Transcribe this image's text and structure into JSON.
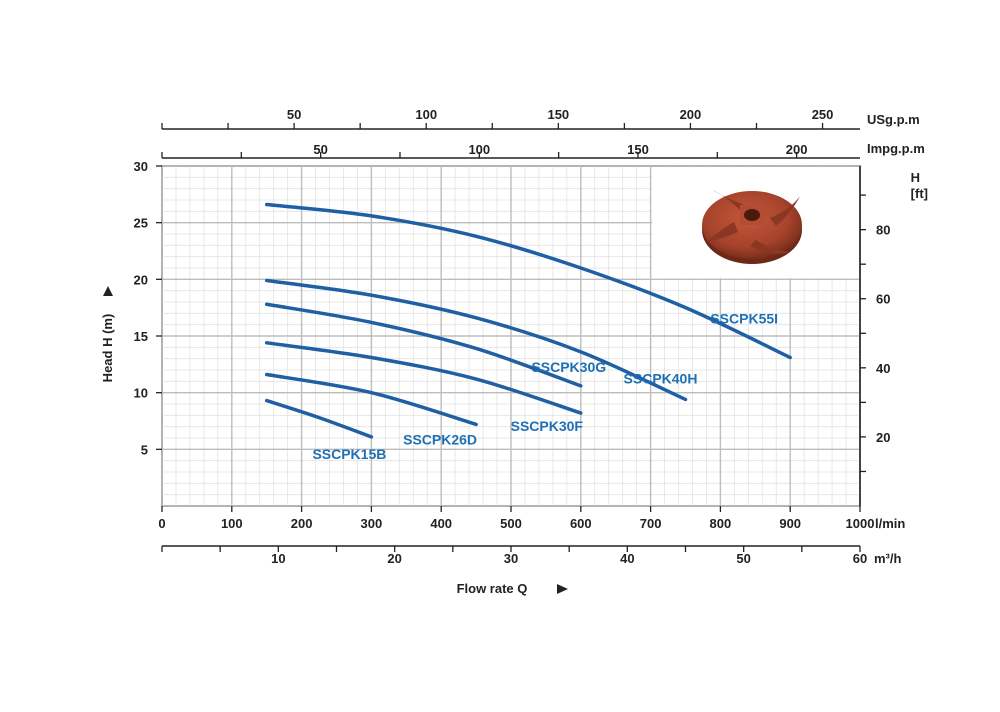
{
  "chart_data": {
    "type": "line",
    "x_unit": "l/min",
    "xlim": [
      0,
      1000
    ],
    "ylim": [
      0,
      30
    ],
    "y_ticks": [
      "5",
      "10",
      "15",
      "20",
      "25",
      "30"
    ],
    "x_ticks": [
      "0",
      "100",
      "200",
      "300",
      "400",
      "500",
      "600",
      "700",
      "800",
      "900",
      "1000"
    ],
    "ylabel": "Head H (m)",
    "xlabel": "Flow rate Q",
    "grid": true,
    "secondary_axes": {
      "usg": {
        "unit": "USg.p.m",
        "ticks": [
          "50",
          "100",
          "150",
          "200",
          "250"
        ]
      },
      "impg": {
        "unit": "Impg.p.m",
        "ticks": [
          "50",
          "100",
          "150",
          "200"
        ]
      },
      "m3h": {
        "unit": "m³/h",
        "ticks": [
          "10",
          "20",
          "30",
          "40",
          "50",
          "60"
        ]
      },
      "ft": {
        "unit_line1": "H",
        "unit_line2": "[ft]",
        "ticks": [
          "20",
          "40",
          "60",
          "80"
        ]
      }
    },
    "series": [
      {
        "name": "SSCPK55I",
        "x": [
          150,
          300,
          450,
          600,
          750,
          900
        ],
        "y": [
          26.6,
          25.6,
          23.8,
          21.0,
          17.5,
          13.1
        ]
      },
      {
        "name": "SSCPK40H",
        "x": [
          150,
          300,
          450,
          600,
          750
        ],
        "y": [
          19.9,
          18.6,
          16.6,
          13.6,
          9.4
        ]
      },
      {
        "name": "SSCPK30G",
        "x": [
          150,
          300,
          450,
          600
        ],
        "y": [
          17.8,
          16.2,
          13.9,
          10.6
        ]
      },
      {
        "name": "SSCPK30F",
        "x": [
          150,
          300,
          450,
          600
        ],
        "y": [
          14.4,
          13.1,
          11.2,
          8.2
        ]
      },
      {
        "name": "SSCPK26D",
        "x": [
          150,
          300,
          450
        ],
        "y": [
          11.6,
          10.0,
          7.2
        ]
      },
      {
        "name": "SSCPK15B",
        "x": [
          150,
          225,
          300
        ],
        "y": [
          9.3,
          7.8,
          6.1
        ]
      }
    ],
    "line_color": "#1f5fa3",
    "label_color": "#1f6fb5"
  },
  "product_image": {
    "name": "impeller",
    "color": "#a6432c"
  }
}
